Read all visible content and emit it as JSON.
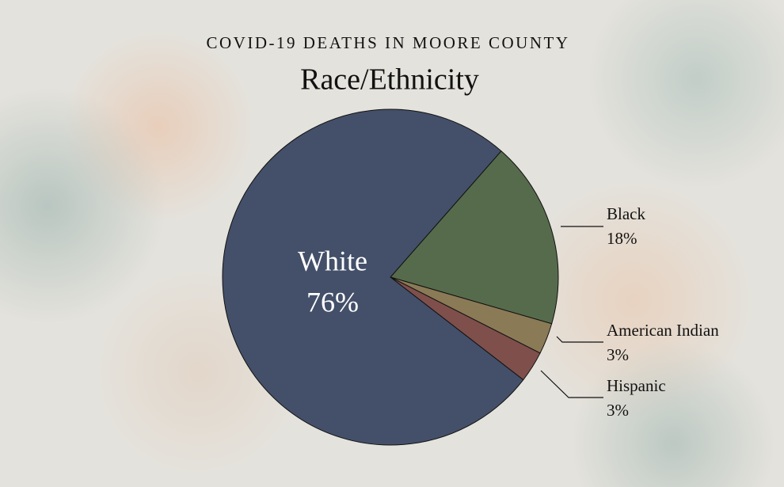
{
  "chart_data": {
    "type": "pie",
    "title": "COVID-19 DEATHS IN MOORE COUNTY",
    "subtitle": "Race/Ethnicity",
    "categories": [
      "Black",
      "American Indian",
      "Hispanic",
      "White"
    ],
    "values": [
      18,
      3,
      3,
      76
    ],
    "value_labels": [
      "18%",
      "3%",
      "3%",
      "76%"
    ],
    "colors": [
      "#566b4c",
      "#8a7a56",
      "#7f4f4c",
      "#445069"
    ]
  }
}
